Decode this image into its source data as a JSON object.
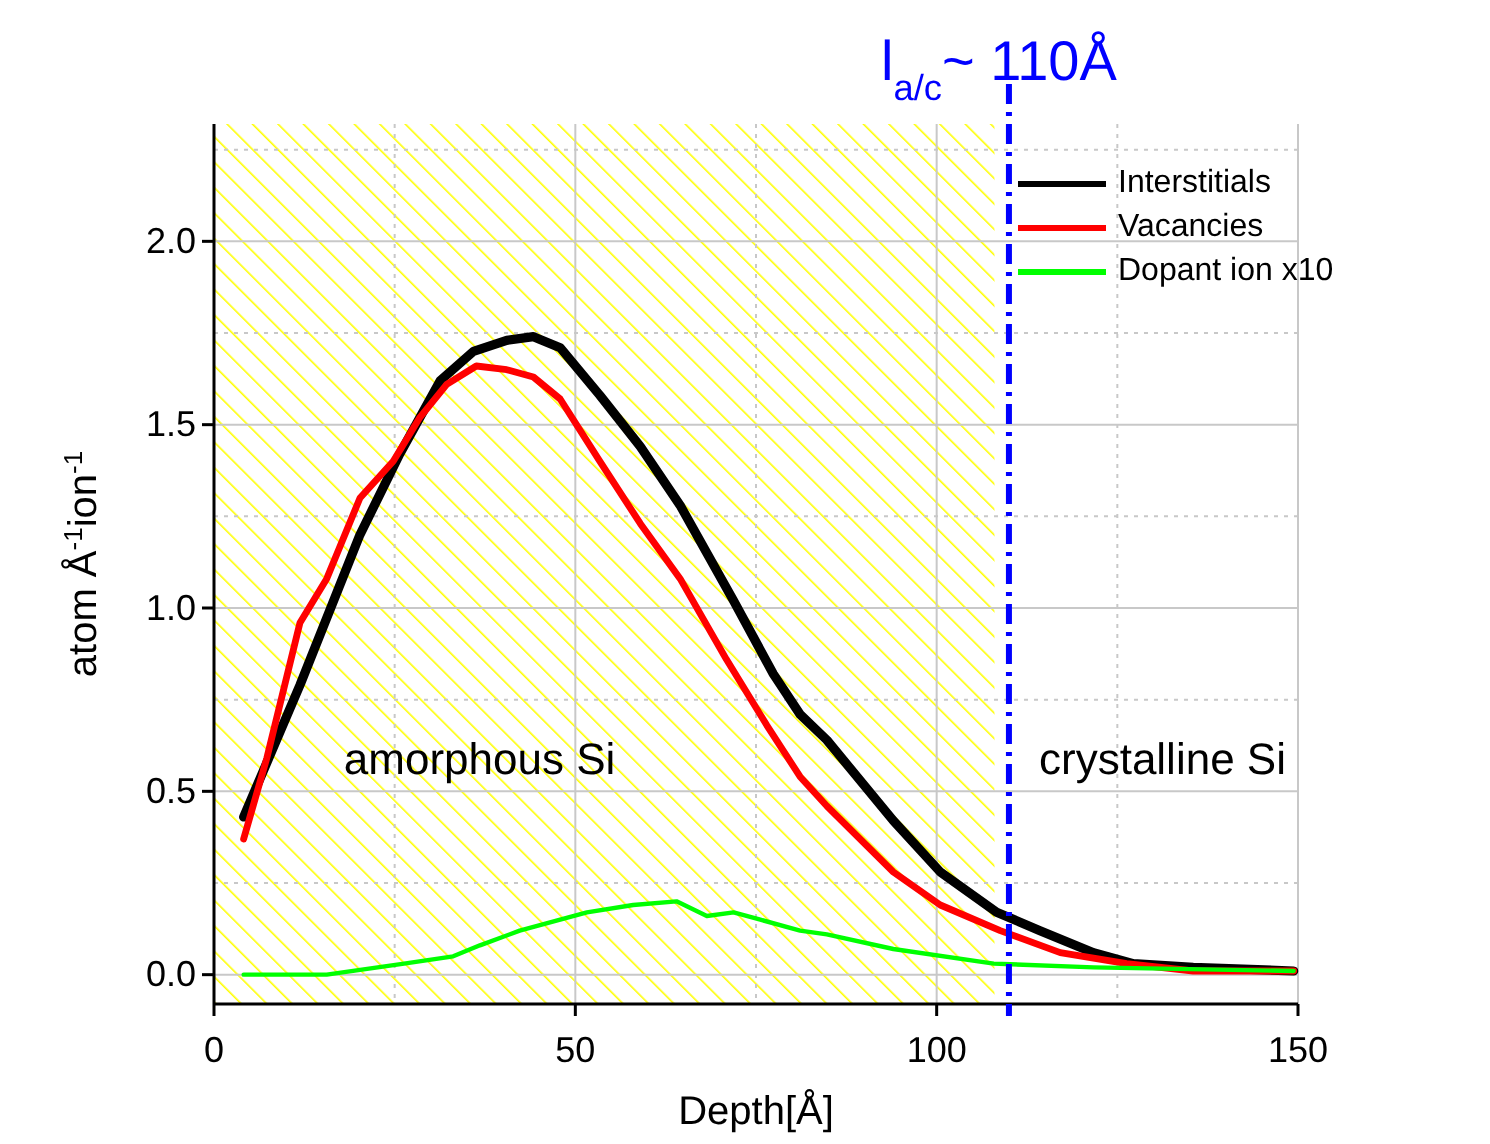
{
  "chart_data": {
    "type": "line",
    "xlabel": "Depth[Å]",
    "ylabel": "atom Å$^{-1}$ion$^{-1}$",
    "xlim": [
      0,
      150
    ],
    "xticks": [
      0,
      50,
      100,
      150
    ],
    "ylim": [
      -0.08,
      2.32
    ],
    "yticks": [
      {
        "value": 0,
        "label": "0.0"
      },
      {
        "value": 0.5,
        "label": "0.5"
      },
      {
        "value": 1,
        "label": "1.0"
      },
      {
        "value": 1.5,
        "label": "1.5"
      },
      {
        "value": 2,
        "label": "2.0"
      }
    ],
    "grid": true,
    "legend": "top right",
    "line_style": "solid",
    "marker": "none",
    "series": [
      {
        "name": "Interstitials",
        "color": "#000000",
        "x": [
          4.1,
          11.9,
          20.2,
          25.7,
          31.3,
          35.9,
          40.5,
          44.2,
          47.9,
          53.4,
          59,
          64.5,
          71.9,
          77.4,
          81.1,
          84.8,
          94,
          100.5,
          108.3,
          114.3,
          121.7,
          127.2,
          135.5,
          149.4
        ],
        "values": [
          0.43,
          0.79,
          1.2,
          1.42,
          1.62,
          1.7,
          1.73,
          1.74,
          1.71,
          1.58,
          1.44,
          1.28,
          1.02,
          0.82,
          0.71,
          0.64,
          0.42,
          0.28,
          0.17,
          0.12,
          0.06,
          0.03,
          0.02,
          0.01
        ]
      },
      {
        "name": "Vacancies",
        "color": "#ff0000",
        "x": [
          4.1,
          7.3,
          11.9,
          15.6,
          20.2,
          24.8,
          28.5,
          32.2,
          36.3,
          40.5,
          44.2,
          47.9,
          53.4,
          59,
          64.5,
          70.9,
          76.5,
          81.1,
          84.8,
          94,
          100.5,
          108.8,
          117.1,
          126.3,
          135.5,
          149.4
        ],
        "values": [
          0.37,
          0.59,
          0.96,
          1.08,
          1.3,
          1.4,
          1.52,
          1.61,
          1.66,
          1.65,
          1.63,
          1.57,
          1.4,
          1.23,
          1.08,
          0.86,
          0.68,
          0.54,
          0.46,
          0.28,
          0.19,
          0.12,
          0.06,
          0.03,
          0.01,
          0.01
        ]
      },
      {
        "name": "Dopant ion x10",
        "color": "#00ff00",
        "x": [
          4.1,
          15.6,
          26.3,
          33.1,
          36.8,
          42.3,
          51.6,
          58,
          64,
          68.2,
          71.9,
          75.6,
          81.1,
          84.8,
          94,
          107.9,
          121.7,
          149.4
        ],
        "values": [
          0,
          0,
          0.03,
          0.05,
          0.08,
          0.12,
          0.17,
          0.19,
          0.2,
          0.16,
          0.17,
          0.15,
          0.12,
          0.11,
          0.07,
          0.03,
          0.02,
          0.01
        ]
      }
    ],
    "bands": [
      {
        "axis": "x",
        "from": 0,
        "to": 108,
        "color": "#ffff00"
      }
    ],
    "ref_lines": [
      {
        "axis": "x",
        "value": 110,
        "label": "l$_{a/c}$~ 110Å",
        "color": "#0000ff",
        "line_style": "dashdot"
      }
    ],
    "annotations": [
      "amorphous Si",
      "crystalline Si"
    ]
  }
}
